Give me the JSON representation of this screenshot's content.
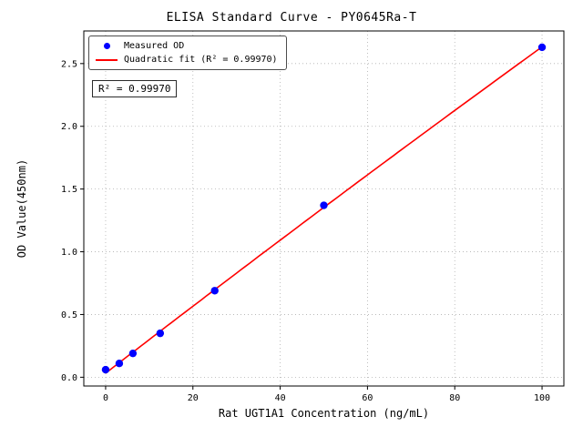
{
  "figure": {
    "annotation": "R² = 0.99970"
  },
  "legend": {
    "items": [
      {
        "label": "Measured OD",
        "marker": "dot",
        "color": "#0000ff"
      },
      {
        "label": "Quadratic fit (R² = 0.99970)",
        "marker": "line",
        "color": "#ff0000"
      }
    ]
  },
  "chart_data": {
    "type": "scatter",
    "title": "ELISA Standard Curve - PY0645Ra-T",
    "xlabel": "Rat UGT1A1 Concentration (ng/mL)",
    "ylabel": "OD Value(450nm)",
    "x": [
      0,
      3.125,
      6.25,
      12.5,
      25,
      50,
      100
    ],
    "y": [
      0.06,
      0.11,
      0.19,
      0.35,
      0.69,
      1.37,
      2.63
    ],
    "fit": {
      "type": "quadratic",
      "r_squared": 0.9997,
      "label": "Quadratic fit (R² = 0.99970)"
    },
    "xlim": [
      -5,
      105
    ],
    "ylim": [
      -0.07,
      2.76
    ],
    "xticks": [
      0,
      20,
      40,
      60,
      80,
      100
    ],
    "yticks": [
      0.0,
      0.5,
      1.0,
      1.5,
      2.0,
      2.5
    ],
    "grid": true,
    "legend_position": "upper-left",
    "point_color": "#0000ff",
    "line_color": "#ff0000"
  }
}
